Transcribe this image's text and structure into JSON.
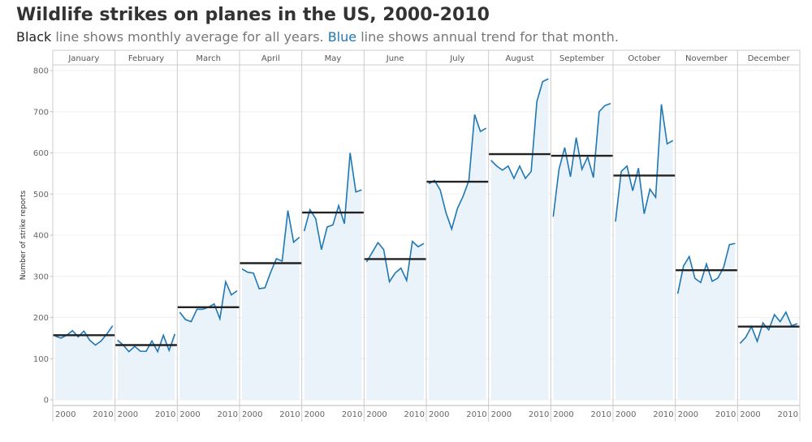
{
  "title": "Wildlife strikes on planes in the US, 2000-2010",
  "subtitle": {
    "part1": "Black",
    "part2": " line shows monthly average for all years. ",
    "part3": "Blue",
    "part4": " line shows annual trend for that month."
  },
  "colors": {
    "trend": "#1f77b4",
    "average": "#222222",
    "area": "#eaf2fa",
    "grid": "#cccccc"
  },
  "chart_data": {
    "type": "line",
    "ylabel": "Number of strike reports",
    "ylim": [
      0,
      800
    ],
    "yticks": [
      0,
      100,
      200,
      300,
      400,
      500,
      600,
      700,
      800
    ],
    "x_tick_labels": [
      "2000",
      "2010"
    ],
    "years": [
      2000,
      2001,
      2002,
      2003,
      2004,
      2005,
      2006,
      2007,
      2008,
      2009,
      2010
    ],
    "months": [
      {
        "name": "January",
        "average": 157,
        "values": [
          155,
          150,
          157,
          168,
          153,
          167,
          145,
          133,
          143,
          160,
          180
        ]
      },
      {
        "name": "February",
        "average": 133,
        "values": [
          145,
          133,
          117,
          130,
          118,
          118,
          143,
          117,
          157,
          120,
          160
        ]
      },
      {
        "name": "March",
        "average": 225,
        "values": [
          213,
          195,
          190,
          220,
          220,
          225,
          233,
          197,
          287,
          255,
          265
        ]
      },
      {
        "name": "April",
        "average": 332,
        "values": [
          318,
          310,
          308,
          270,
          272,
          310,
          343,
          337,
          460,
          383,
          395
        ]
      },
      {
        "name": "May",
        "average": 455,
        "values": [
          410,
          462,
          440,
          365,
          420,
          425,
          472,
          428,
          600,
          505,
          510
        ]
      },
      {
        "name": "June",
        "average": 342,
        "values": [
          335,
          358,
          382,
          365,
          287,
          308,
          320,
          290,
          385,
          372,
          380
        ]
      },
      {
        "name": "July",
        "average": 530,
        "values": [
          525,
          533,
          510,
          455,
          415,
          465,
          495,
          533,
          693,
          652,
          660
        ]
      },
      {
        "name": "August",
        "average": 597,
        "values": [
          582,
          568,
          558,
          568,
          538,
          568,
          538,
          555,
          725,
          773,
          780
        ]
      },
      {
        "name": "September",
        "average": 593,
        "values": [
          445,
          560,
          613,
          542,
          637,
          560,
          590,
          540,
          700,
          715,
          720
        ]
      },
      {
        "name": "October",
        "average": 545,
        "values": [
          433,
          555,
          568,
          508,
          563,
          452,
          512,
          492,
          718,
          622,
          630
        ]
      },
      {
        "name": "November",
        "average": 315,
        "values": [
          258,
          325,
          348,
          295,
          285,
          330,
          288,
          296,
          322,
          377,
          380
        ]
      },
      {
        "name": "December",
        "average": 178,
        "values": [
          137,
          152,
          178,
          142,
          187,
          170,
          207,
          190,
          213,
          180,
          185
        ]
      }
    ]
  }
}
